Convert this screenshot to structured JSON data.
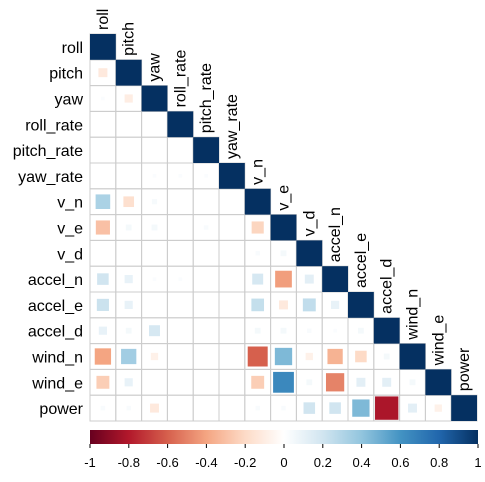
{
  "chart_data": {
    "type": "heatmap",
    "subtype": "correlation-lower-triangle",
    "variables": [
      "roll",
      "pitch",
      "yaw",
      "roll_rate",
      "pitch_rate",
      "yaw_rate",
      "v_n",
      "v_e",
      "v_d",
      "accel_n",
      "accel_e",
      "accel_d",
      "wind_n",
      "wind_e",
      "power"
    ],
    "matrix": [
      [
        1
      ],
      [
        -0.12,
        1
      ],
      [
        0.02,
        -0.1,
        1
      ],
      [
        0.0,
        0.0,
        0.0,
        1
      ],
      [
        0.0,
        0.0,
        0.0,
        0.0,
        1
      ],
      [
        0.0,
        0.0,
        0.02,
        0.02,
        0.02,
        1
      ],
      [
        0.32,
        -0.17,
        0.04,
        0.0,
        0.0,
        0.0,
        1
      ],
      [
        -0.3,
        0.05,
        0.05,
        0.0,
        0.03,
        0.0,
        -0.22,
        1
      ],
      [
        0.0,
        0.0,
        0.0,
        0.0,
        0.0,
        0.0,
        0.03,
        0.05,
        1
      ],
      [
        0.2,
        0.1,
        0.02,
        0.02,
        0.0,
        0.0,
        0.18,
        -0.42,
        0.12,
        1
      ],
      [
        0.22,
        0.1,
        0.0,
        0.0,
        0.0,
        0.0,
        0.24,
        -0.12,
        0.25,
        0.1,
        1
      ],
      [
        0.1,
        0.05,
        0.18,
        0.0,
        0.0,
        0.0,
        0.05,
        0.05,
        0.03,
        0.02,
        0.05,
        1
      ],
      [
        -0.4,
        0.35,
        -0.08,
        0.0,
        0.0,
        0.0,
        -0.6,
        0.45,
        -0.08,
        -0.35,
        -0.2,
        0.05,
        1
      ],
      [
        -0.25,
        0.1,
        0.0,
        0.0,
        0.0,
        0.0,
        -0.25,
        0.65,
        0.05,
        -0.5,
        0.12,
        0.12,
        0.05,
        1
      ],
      [
        0.03,
        0.03,
        -0.12,
        0.0,
        0.0,
        0.0,
        0.03,
        0.03,
        0.2,
        0.2,
        0.45,
        -0.82,
        0.12,
        -0.08,
        1
      ]
    ],
    "color_scale": {
      "min": -1,
      "max": 1,
      "negative_color": "#67001F",
      "zero_color": "#FFFFFF",
      "positive_color": "#053061",
      "stops": [
        {
          "v": -1,
          "c": "#67001F"
        },
        {
          "v": -0.8,
          "c": "#B2182B"
        },
        {
          "v": -0.6,
          "c": "#D6604D"
        },
        {
          "v": -0.4,
          "c": "#F4A582"
        },
        {
          "v": -0.2,
          "c": "#FDDBC7"
        },
        {
          "v": 0,
          "c": "#FFFFFF"
        },
        {
          "v": 0.2,
          "c": "#D1E5F0"
        },
        {
          "v": 0.4,
          "c": "#92C5DE"
        },
        {
          "v": 0.6,
          "c": "#4393C3"
        },
        {
          "v": 0.8,
          "c": "#2166AC"
        },
        {
          "v": 1,
          "c": "#053061"
        }
      ]
    },
    "colorbar_ticks": [
      "-1",
      "-0.8",
      "-0.6",
      "-0.4",
      "-0.2",
      "0",
      "0.2",
      "0.4",
      "0.6",
      "0.8",
      "1"
    ],
    "square_size_by_magnitude": true,
    "grid": true,
    "grid_color": "#CCCCCC"
  }
}
